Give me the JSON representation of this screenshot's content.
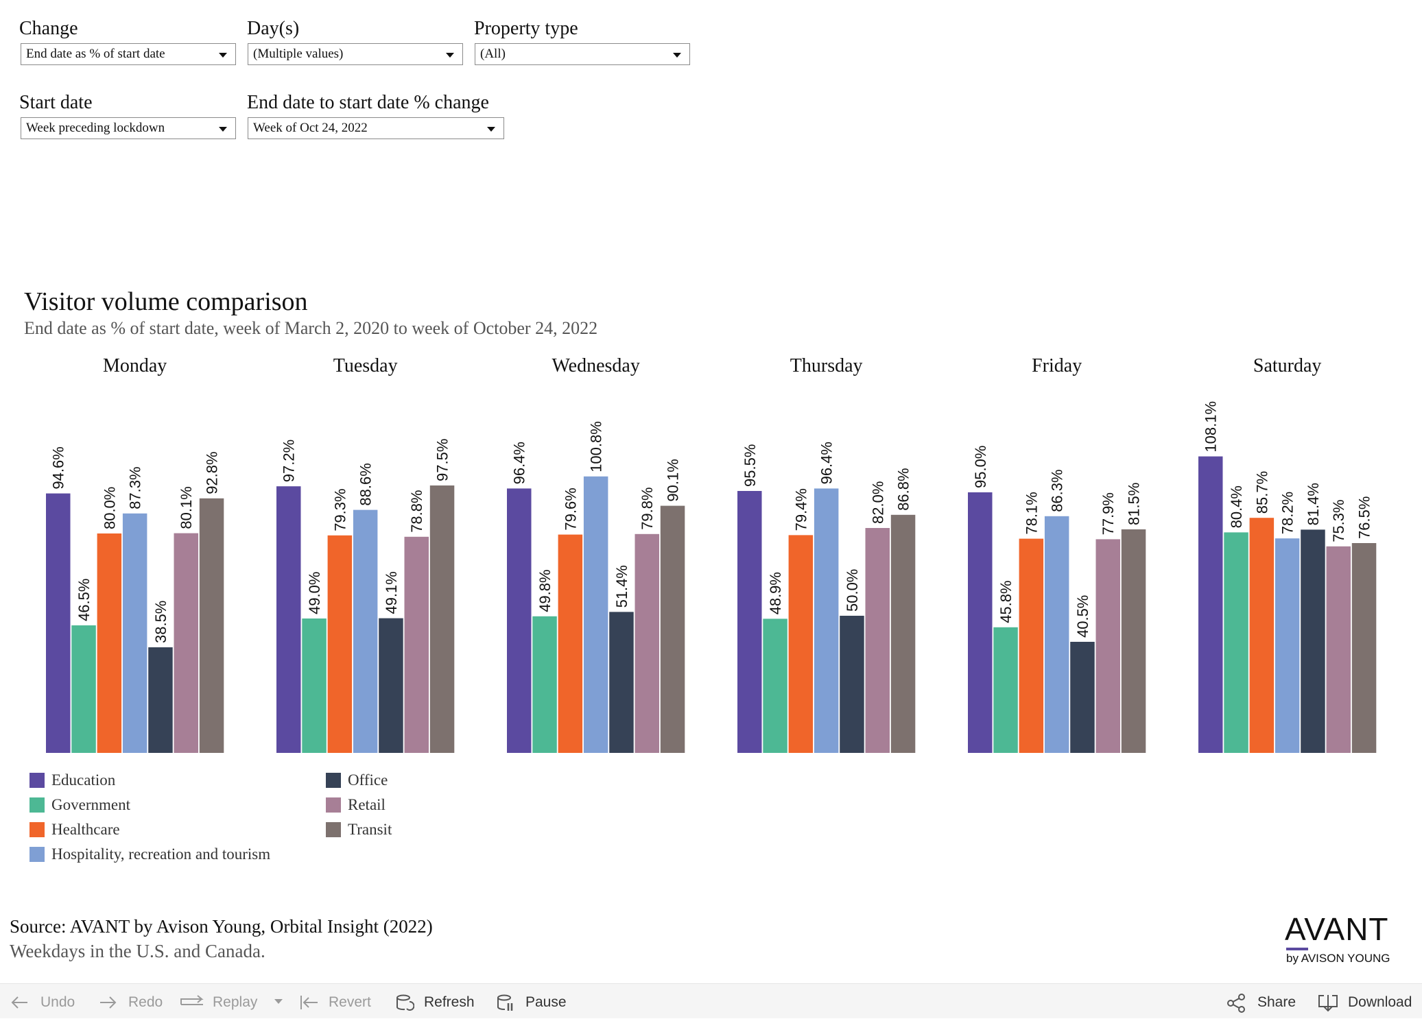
{
  "filters": {
    "change": {
      "label": "Change",
      "value": "End date as % of start date"
    },
    "days": {
      "label": "Day(s)",
      "value": "(Multiple values)"
    },
    "property_type": {
      "label": "Property type",
      "value": "(All)"
    },
    "start_date": {
      "label": "Start date",
      "value": "Week preceding lockdown"
    },
    "end_date": {
      "label": "End date to start date % change",
      "value": "Week of Oct 24, 2022"
    }
  },
  "chart_data": {
    "type": "bar",
    "title": "Visitor volume comparison",
    "subtitle": "End date as % of start date, week of March 2, 2020 to week of October 24, 2022",
    "xlabel": "",
    "ylabel": "",
    "ylim": [
      0,
      110
    ],
    "grid": false,
    "legend_position": "bottom-left",
    "panels": [
      "Monday",
      "Tuesday",
      "Wednesday",
      "Thursday",
      "Friday",
      "Saturday"
    ],
    "series": [
      {
        "name": "Education",
        "color": "#5b4aa0",
        "values": [
          94.6,
          97.2,
          96.4,
          95.5,
          95.0,
          108.1
        ]
      },
      {
        "name": "Government",
        "color": "#4db894",
        "values": [
          46.5,
          49.0,
          49.8,
          48.9,
          45.8,
          80.4
        ]
      },
      {
        "name": "Healthcare",
        "color": "#f0652a",
        "values": [
          80.0,
          79.3,
          79.6,
          79.4,
          78.1,
          85.7
        ]
      },
      {
        "name": "Hospitality, recreation and tourism",
        "color": "#7f9fd4",
        "values": [
          87.3,
          88.6,
          100.8,
          96.4,
          86.3,
          78.2
        ]
      },
      {
        "name": "Office",
        "color": "#364256",
        "values": [
          38.5,
          49.1,
          51.4,
          50.0,
          40.5,
          81.4
        ]
      },
      {
        "name": "Retail",
        "color": "#a77f96",
        "values": [
          80.1,
          78.8,
          79.8,
          82.0,
          77.9,
          75.3
        ]
      },
      {
        "name": "Transit",
        "color": "#7d716e",
        "values": [
          92.8,
          97.5,
          90.1,
          86.8,
          81.5,
          76.5
        ]
      }
    ],
    "value_format": "0.0%"
  },
  "footer": {
    "source": "Source: AVANT by Avison Young, Orbital Insight (2022)",
    "note": "Weekdays in the U.S. and Canada.",
    "logo_main": "AVANT",
    "logo_sub": "by AVISON YOUNG"
  },
  "toolbar": {
    "undo": "Undo",
    "redo": "Redo",
    "replay": "Replay",
    "revert": "Revert",
    "refresh": "Refresh",
    "pause": "Pause",
    "share": "Share",
    "download": "Download"
  }
}
